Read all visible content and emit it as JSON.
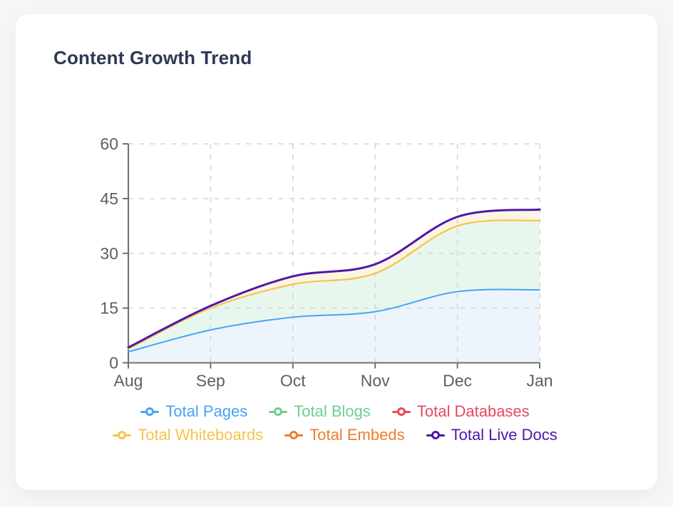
{
  "card": {
    "title": "Content Growth Trend"
  },
  "chart_data": {
    "type": "area",
    "title": "Content Growth Trend",
    "x": [
      "Aug",
      "Sep",
      "Oct",
      "Nov",
      "Dec",
      "Jan"
    ],
    "xlabel": "",
    "ylabel": "",
    "ylim": [
      0,
      60
    ],
    "yticks": [
      0,
      15,
      30,
      45,
      60
    ],
    "grid": true,
    "grid_style": "dashed",
    "legend_position": "bottom",
    "series": [
      {
        "name": "Total Pages",
        "color": "#47a4f5",
        "band_fill": "#edf4fc",
        "values": [
          3,
          9,
          12.5,
          14,
          19.5,
          20
        ],
        "line_visible": true
      },
      {
        "name": "Total Blogs",
        "color": "#6fcf8f",
        "band_fill": "#e8f7ee",
        "values": [
          3.8,
          15,
          21.5,
          24.5,
          37.5,
          39
        ],
        "line_visible": false
      },
      {
        "name": "Total Databases",
        "color": "#e5495e",
        "band_fill": null,
        "values": [
          3.8,
          15,
          21.5,
          24.5,
          37.5,
          39
        ],
        "line_visible": false
      },
      {
        "name": "Total Whiteboards",
        "color": "#f5c34d",
        "band_fill": null,
        "values": [
          3.8,
          15,
          21.5,
          24.5,
          37.5,
          39
        ],
        "line_visible": true
      },
      {
        "name": "Total Embeds",
        "color": "#ee7d2f",
        "band_fill": "#fdf4e1",
        "values": [
          4.2,
          15.6,
          23.7,
          27,
          40,
          42
        ],
        "line_visible": false
      },
      {
        "name": "Total Live Docs",
        "color": "#4d18a8",
        "band_fill": null,
        "values": [
          4.2,
          15.6,
          23.7,
          27,
          40,
          42
        ],
        "line_visible": true
      }
    ],
    "visible_bands": [
      {
        "upper_series": "Total Pages",
        "fill": "#edf4fc"
      },
      {
        "upper_series": "Total Whiteboards",
        "lower_series": "Total Pages",
        "fill": "#e8f7ee"
      },
      {
        "upper_series": "Total Live Docs",
        "lower_series": "Total Whiteboards",
        "fill": "#fdf4e1"
      }
    ],
    "visible_lines": [
      {
        "series": "Total Pages",
        "color": "#47a4f5",
        "width": 2
      },
      {
        "series": "Total Whiteboards",
        "color": "#f5c34d",
        "width": 2.2
      },
      {
        "series": "Total Live Docs",
        "color": "#4d18a8",
        "width": 3
      }
    ]
  },
  "legend": {
    "rows": [
      [
        "Total Pages",
        "Total Blogs",
        "Total Databases"
      ],
      [
        "Total Whiteboards",
        "Total Embeds",
        "Total Live Docs"
      ]
    ]
  },
  "style": {
    "axis_color": "#6f6f6f",
    "tick_label_color": "#5f5f5f",
    "grid_color": "#d6d6d8",
    "title_color": "#2d3852",
    "card_bg": "#ffffff",
    "page_bg": "#f6f6f7"
  }
}
